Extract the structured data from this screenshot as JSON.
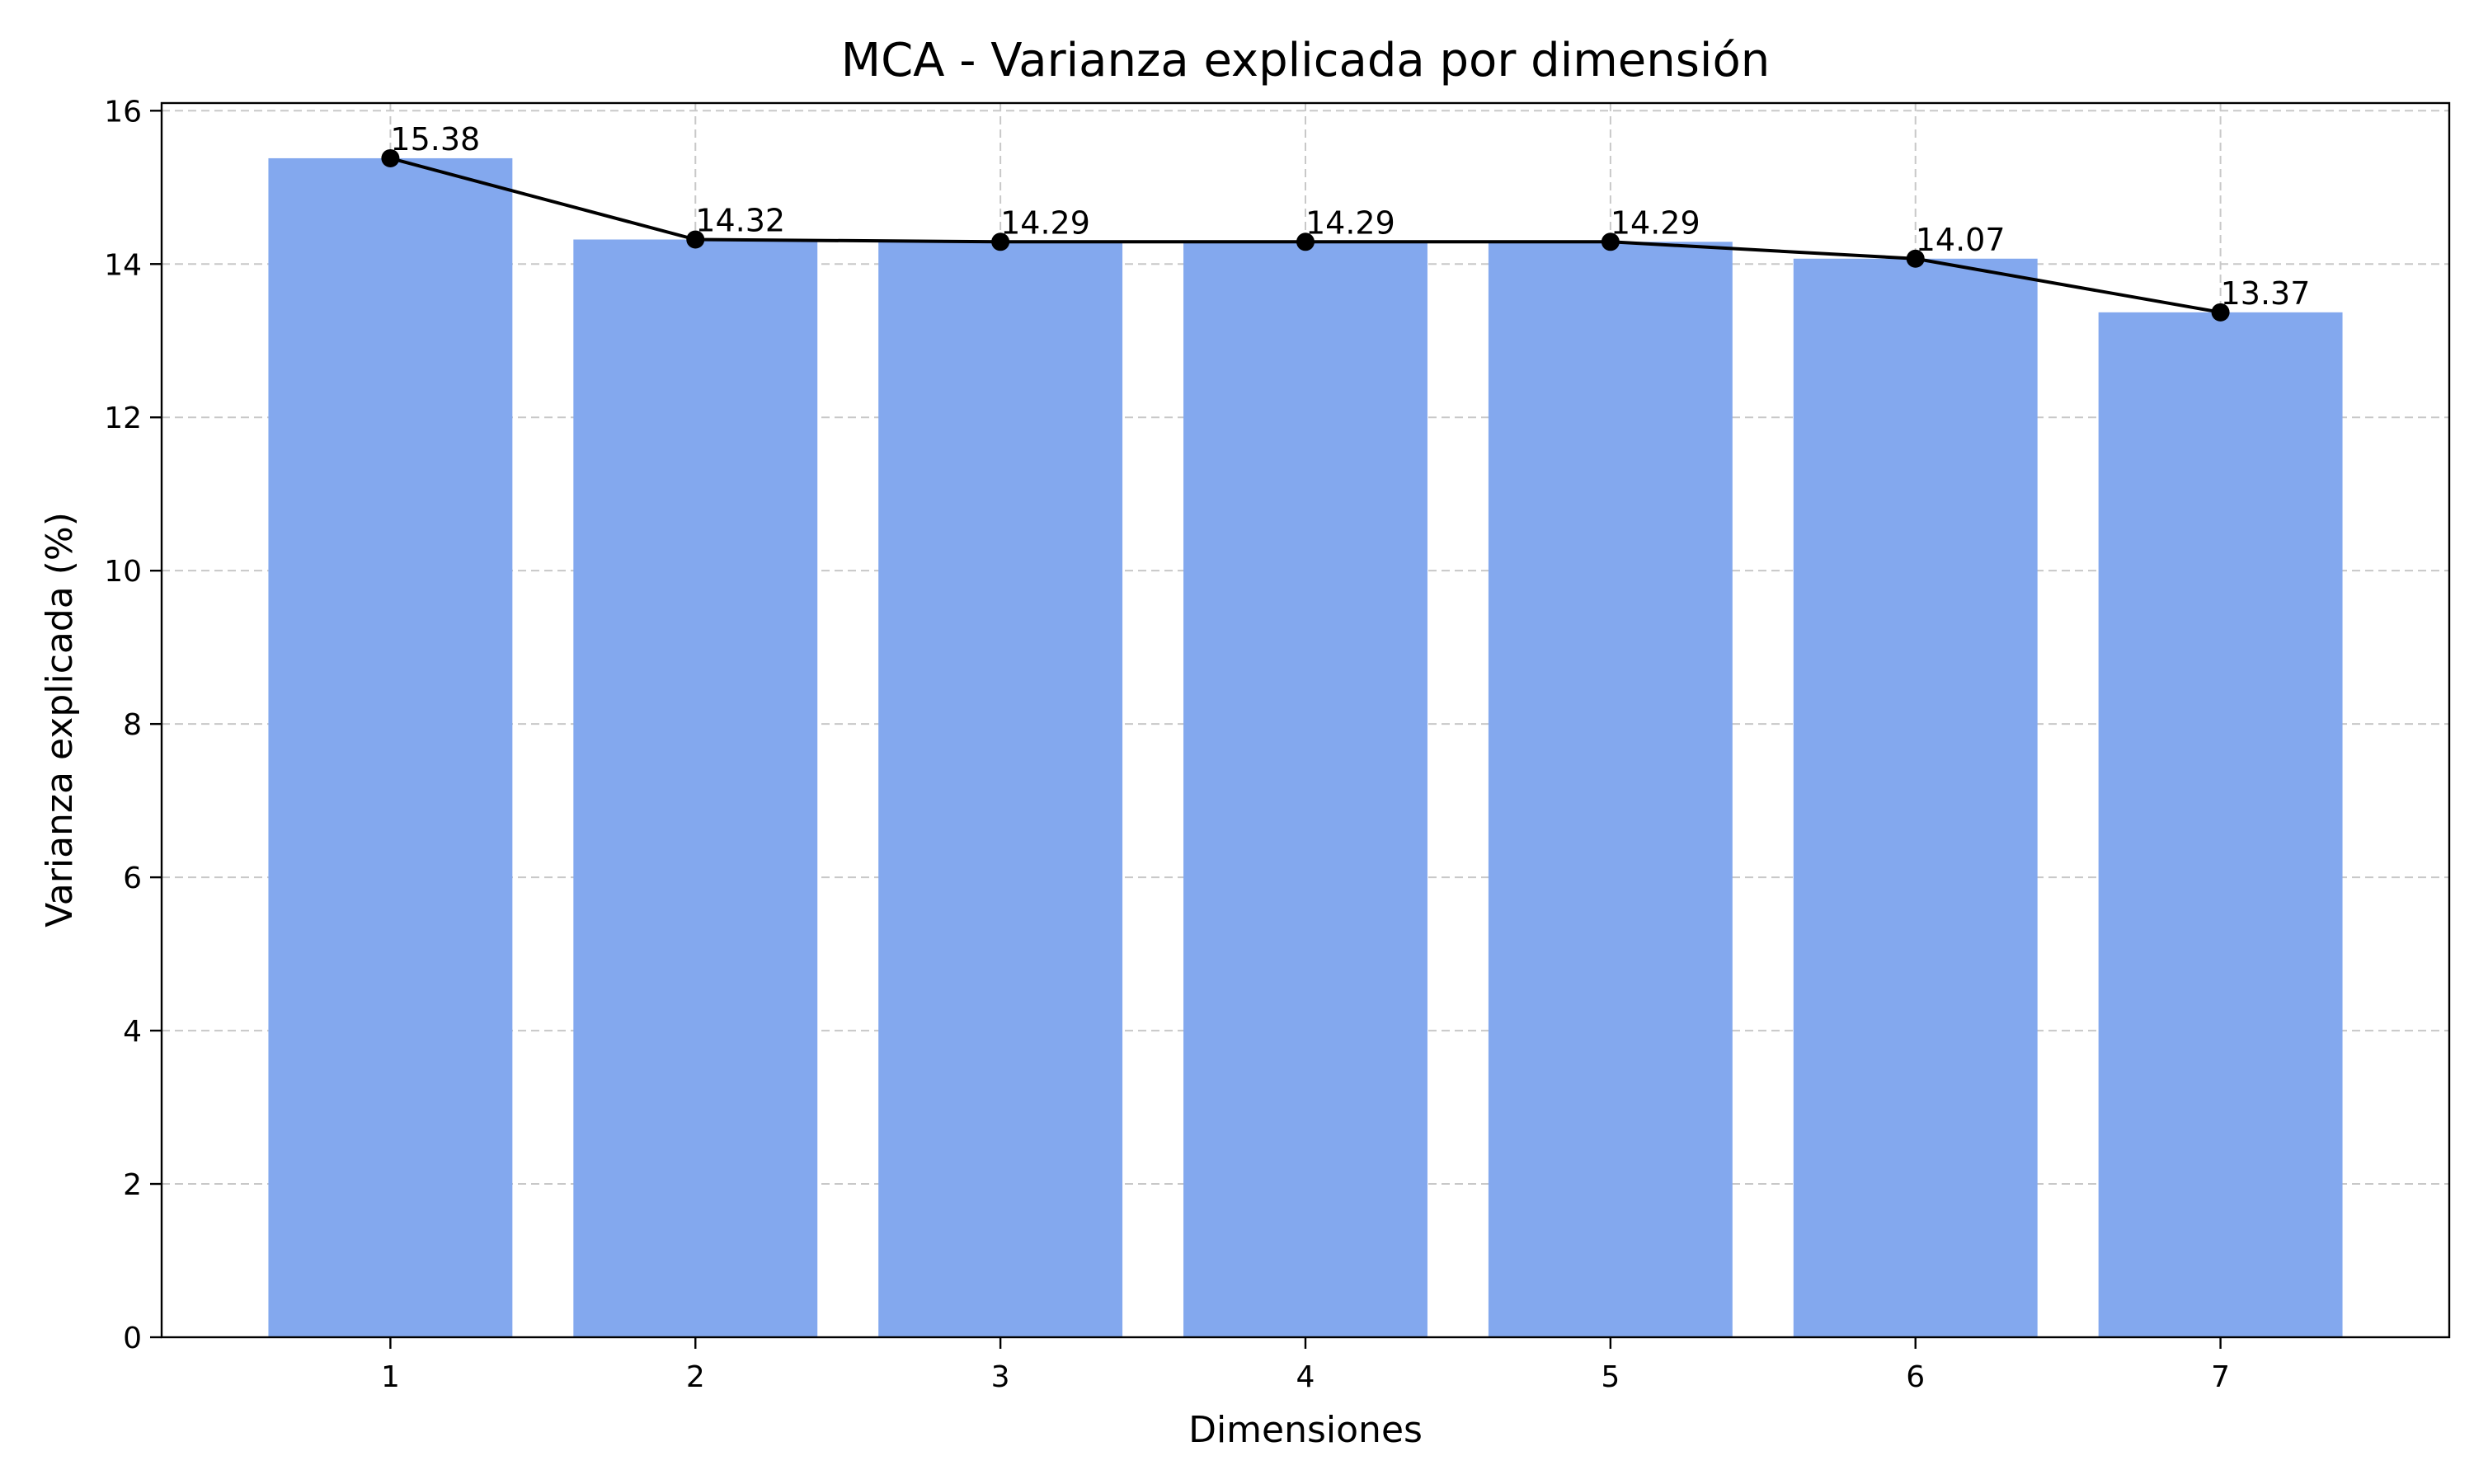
{
  "chart_data": {
    "type": "bar",
    "title": "MCA - Varianza explicada por dimensión",
    "xlabel": "Dimensiones",
    "ylabel": "Varianza explicada (%)",
    "categories": [
      "1",
      "2",
      "3",
      "4",
      "5",
      "6",
      "7"
    ],
    "values": [
      15.38,
      14.32,
      14.29,
      14.29,
      14.29,
      14.07,
      13.37
    ],
    "data_labels": [
      "15.38",
      "14.32",
      "14.29",
      "14.29",
      "14.29",
      "14.07",
      "13.37"
    ],
    "ylim": [
      0,
      16.1
    ],
    "yticks": [
      0,
      2,
      4,
      6,
      8,
      10,
      12,
      14,
      16
    ],
    "ytick_labels": [
      "0",
      "2",
      "4",
      "6",
      "8",
      "10",
      "12",
      "14",
      "16"
    ],
    "grid": true,
    "overlay": {
      "type": "line",
      "marker": "circle",
      "values": [
        15.38,
        14.32,
        14.29,
        14.29,
        14.29,
        14.07,
        13.37
      ]
    },
    "colors": {
      "bar": "#83a8ee",
      "line": "#000000",
      "grid": "#c8c8c8"
    }
  }
}
